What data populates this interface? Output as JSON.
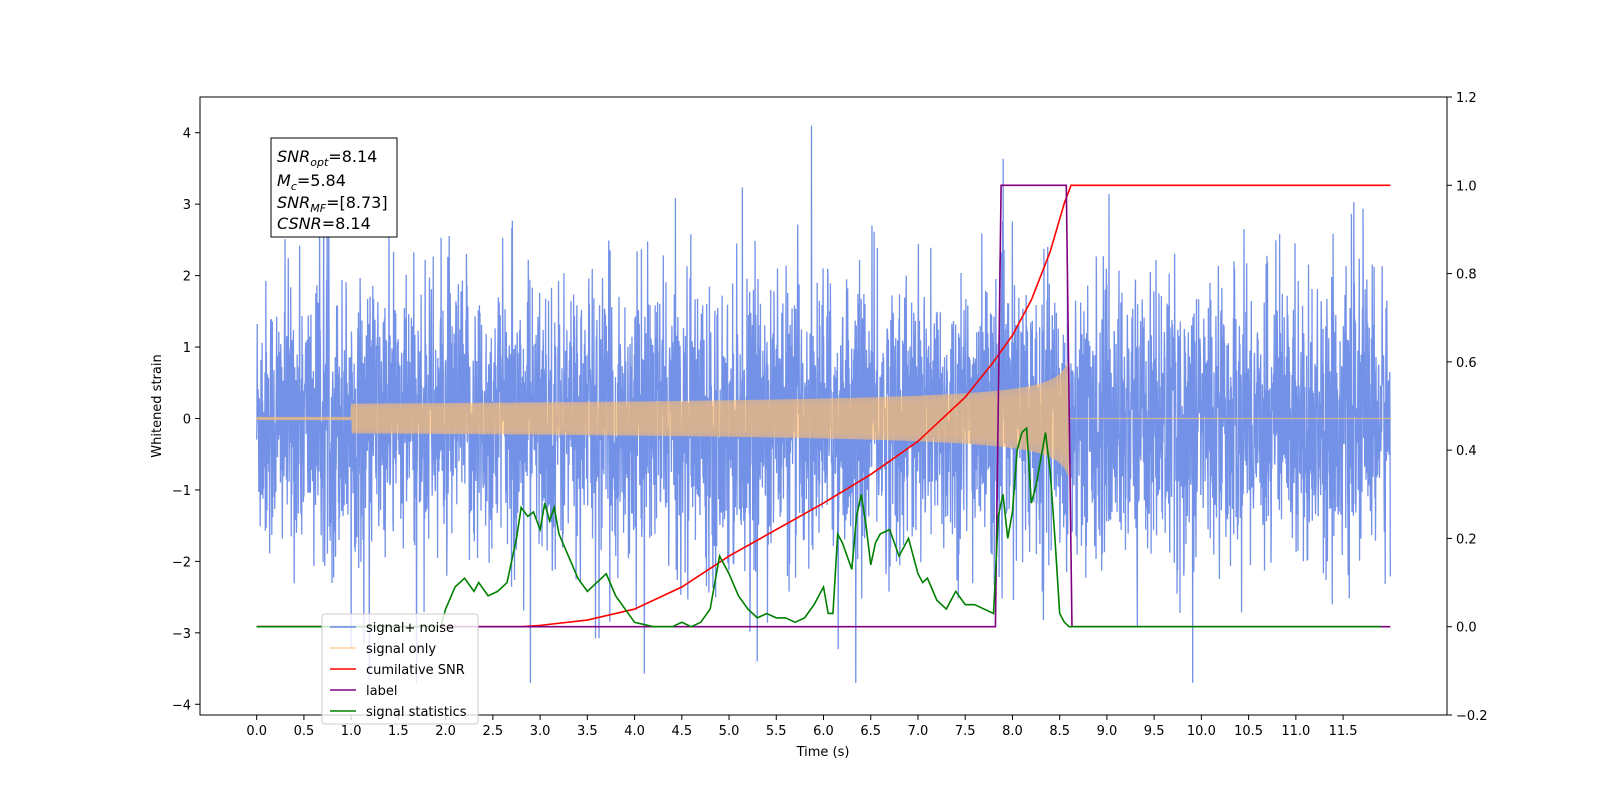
{
  "chart_data": {
    "type": "line",
    "xlabel": "Time (s)",
    "ylabel": "Whitened strain",
    "xlim": [
      -0.6,
      12.6
    ],
    "ylim": [
      -4.15,
      4.5
    ],
    "ylim_right": [
      -0.2,
      1.2
    ],
    "x_ticks": [
      "0.0",
      "0.5",
      "1.0",
      "1.5",
      "2.0",
      "2.5",
      "3.0",
      "3.5",
      "4.0",
      "4.5",
      "5.0",
      "5.5",
      "6.0",
      "6.5",
      "7.0",
      "7.5",
      "8.0",
      "8.5",
      "9.0",
      "9.5",
      "10.0",
      "10.5",
      "11.0",
      "11.5"
    ],
    "y_ticks": [
      "−4",
      "−3",
      "−2",
      "−1",
      "0",
      "1",
      "2",
      "3",
      "4"
    ],
    "y_ticks_right": [
      "−0.2",
      "0.0",
      "0.2",
      "0.4",
      "0.6",
      "0.8",
      "1.0",
      "1.2"
    ],
    "legend_position": "lower-left",
    "annotation": {
      "snr_opt": "=8.14",
      "mc": "=5.84",
      "snr_mf": "=[8.73]",
      "csnr": "=8.14"
    },
    "series": [
      {
        "name": "signal+ noise",
        "axis": "left",
        "color": "#6c8be6",
        "noise_envelope": {
          "x_start": 0.0,
          "x_end": 12.0,
          "typical_range": [
            -2.0,
            2.2
          ],
          "peak_max": 4.1,
          "peak_min": -3.7
        }
      },
      {
        "name": "signal only",
        "axis": "left",
        "color": "#ffbf70",
        "chirp": {
          "x_start": 0.0,
          "x_merge": 8.6,
          "x_end": 12.0,
          "amplitude_at_merge": 0.85
        }
      },
      {
        "name": "cumilative SNR",
        "axis": "right",
        "color": "#ff0000",
        "x": [
          0.0,
          2.8,
          3.0,
          3.5,
          4.0,
          4.5,
          5.0,
          5.5,
          6.0,
          6.5,
          7.0,
          7.5,
          7.8,
          8.0,
          8.2,
          8.4,
          8.55,
          8.62,
          12.0
        ],
        "y": [
          0.0,
          0.0,
          0.003,
          0.015,
          0.04,
          0.09,
          0.16,
          0.22,
          0.28,
          0.345,
          0.42,
          0.52,
          0.6,
          0.66,
          0.74,
          0.85,
          0.96,
          1.0,
          1.0
        ]
      },
      {
        "name": "label",
        "axis": "right",
        "color": "#800080",
        "x": [
          0.0,
          7.82,
          7.88,
          8.57,
          8.63,
          12.0
        ],
        "y": [
          0.0,
          0.0,
          1.0,
          1.0,
          0.0,
          0.0
        ]
      },
      {
        "name": "signal statistics",
        "axis": "right",
        "color": "#008000",
        "x": [
          0.0,
          1.95,
          2.0,
          2.1,
          2.2,
          2.3,
          2.35,
          2.45,
          2.55,
          2.65,
          2.75,
          2.8,
          2.87,
          2.93,
          3.0,
          3.05,
          3.1,
          3.15,
          3.2,
          3.3,
          3.4,
          3.5,
          3.6,
          3.7,
          3.8,
          3.9,
          4.0,
          4.2,
          4.4,
          4.5,
          4.6,
          4.7,
          4.8,
          4.9,
          5.0,
          5.1,
          5.2,
          5.3,
          5.4,
          5.5,
          5.6,
          5.7,
          5.8,
          5.9,
          6.0,
          6.05,
          6.1,
          6.15,
          6.2,
          6.3,
          6.35,
          6.4,
          6.45,
          6.5,
          6.55,
          6.6,
          6.7,
          6.8,
          6.9,
          6.95,
          7.0,
          7.05,
          7.1,
          7.2,
          7.3,
          7.4,
          7.5,
          7.6,
          7.7,
          7.8,
          7.85,
          7.9,
          7.95,
          8.0,
          8.05,
          8.1,
          8.15,
          8.2,
          8.25,
          8.3,
          8.35,
          8.4,
          8.45,
          8.5,
          8.55,
          8.6,
          8.65,
          8.7,
          8.8,
          9.0,
          11.9
        ],
        "y": [
          0.0,
          0.0,
          0.04,
          0.09,
          0.11,
          0.08,
          0.1,
          0.07,
          0.08,
          0.1,
          0.2,
          0.27,
          0.25,
          0.26,
          0.22,
          0.28,
          0.24,
          0.27,
          0.21,
          0.16,
          0.11,
          0.08,
          0.1,
          0.12,
          0.07,
          0.04,
          0.01,
          0.0,
          0.0,
          0.01,
          0.0,
          0.01,
          0.04,
          0.16,
          0.12,
          0.07,
          0.04,
          0.02,
          0.03,
          0.02,
          0.02,
          0.01,
          0.02,
          0.05,
          0.09,
          0.03,
          0.03,
          0.21,
          0.19,
          0.13,
          0.25,
          0.3,
          0.23,
          0.14,
          0.19,
          0.21,
          0.22,
          0.16,
          0.2,
          0.16,
          0.12,
          0.1,
          0.11,
          0.06,
          0.04,
          0.08,
          0.05,
          0.05,
          0.04,
          0.03,
          0.25,
          0.3,
          0.2,
          0.26,
          0.4,
          0.44,
          0.45,
          0.28,
          0.32,
          0.38,
          0.44,
          0.35,
          0.2,
          0.03,
          0.01,
          0.0,
          0.0,
          0.0,
          0.0,
          0.0,
          0.0
        ]
      }
    ]
  }
}
